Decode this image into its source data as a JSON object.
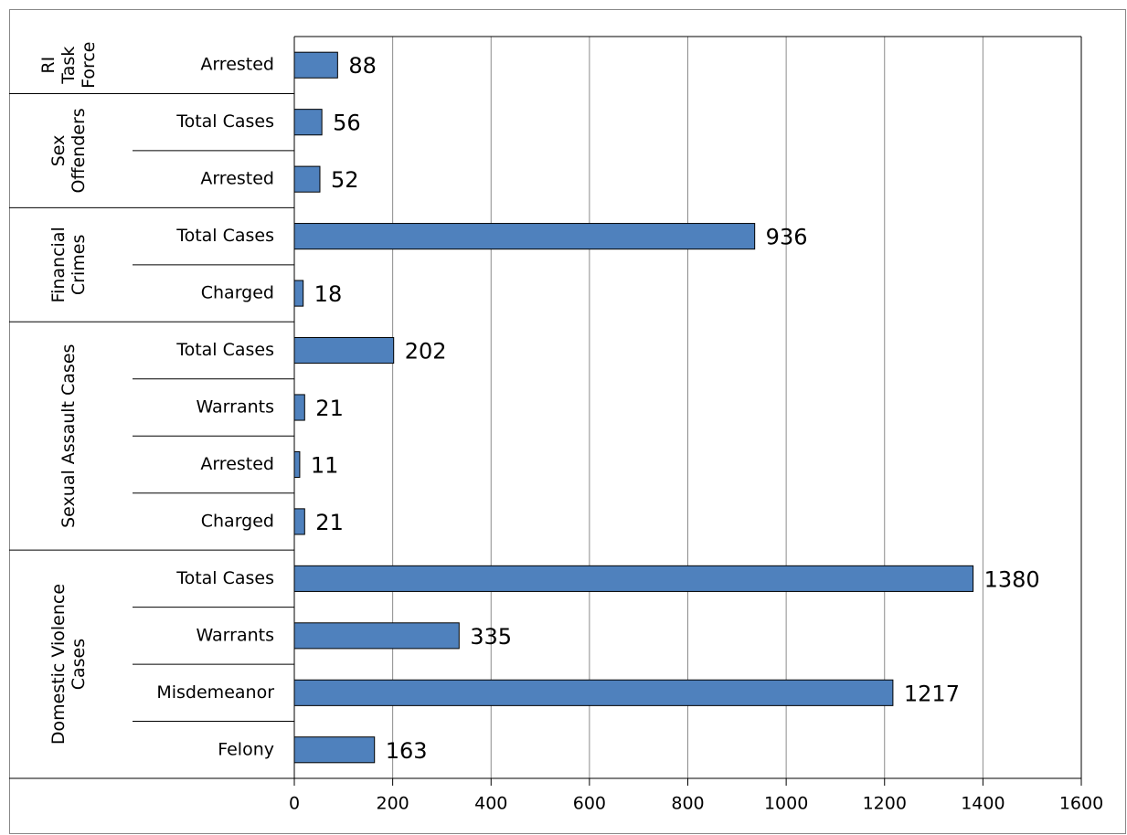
{
  "chart_data": {
    "type": "bar",
    "orientation": "horizontal",
    "color": "#4f81bd",
    "groups": [
      {
        "label": [
          "RI",
          "Task",
          "Force"
        ],
        "categories": [
          "Arrested"
        ],
        "values": [
          88
        ]
      },
      {
        "label": [
          "Sex",
          "Offenders"
        ],
        "categories": [
          "Total Cases",
          "Arrested"
        ],
        "values": [
          56,
          52
        ]
      },
      {
        "label": [
          "Financial",
          "Crimes"
        ],
        "categories": [
          "Total Cases",
          "Charged"
        ],
        "values": [
          936,
          18
        ]
      },
      {
        "label": [
          "Sexual Assault Cases"
        ],
        "categories": [
          "Total Cases",
          "Warrants",
          "Arrested",
          "Charged"
        ],
        "values": [
          202,
          21,
          11,
          21
        ]
      },
      {
        "label": [
          "Domestic Violence",
          "Cases"
        ],
        "categories": [
          "Total Cases",
          "Warrants",
          "Misdemeanor",
          "Felony"
        ],
        "values": [
          1380,
          335,
          1217,
          163
        ]
      }
    ],
    "xlim": [
      0,
      1600
    ],
    "xticks": [
      0,
      200,
      400,
      600,
      800,
      1000,
      1200,
      1400,
      1600
    ],
    "grid": true
  }
}
